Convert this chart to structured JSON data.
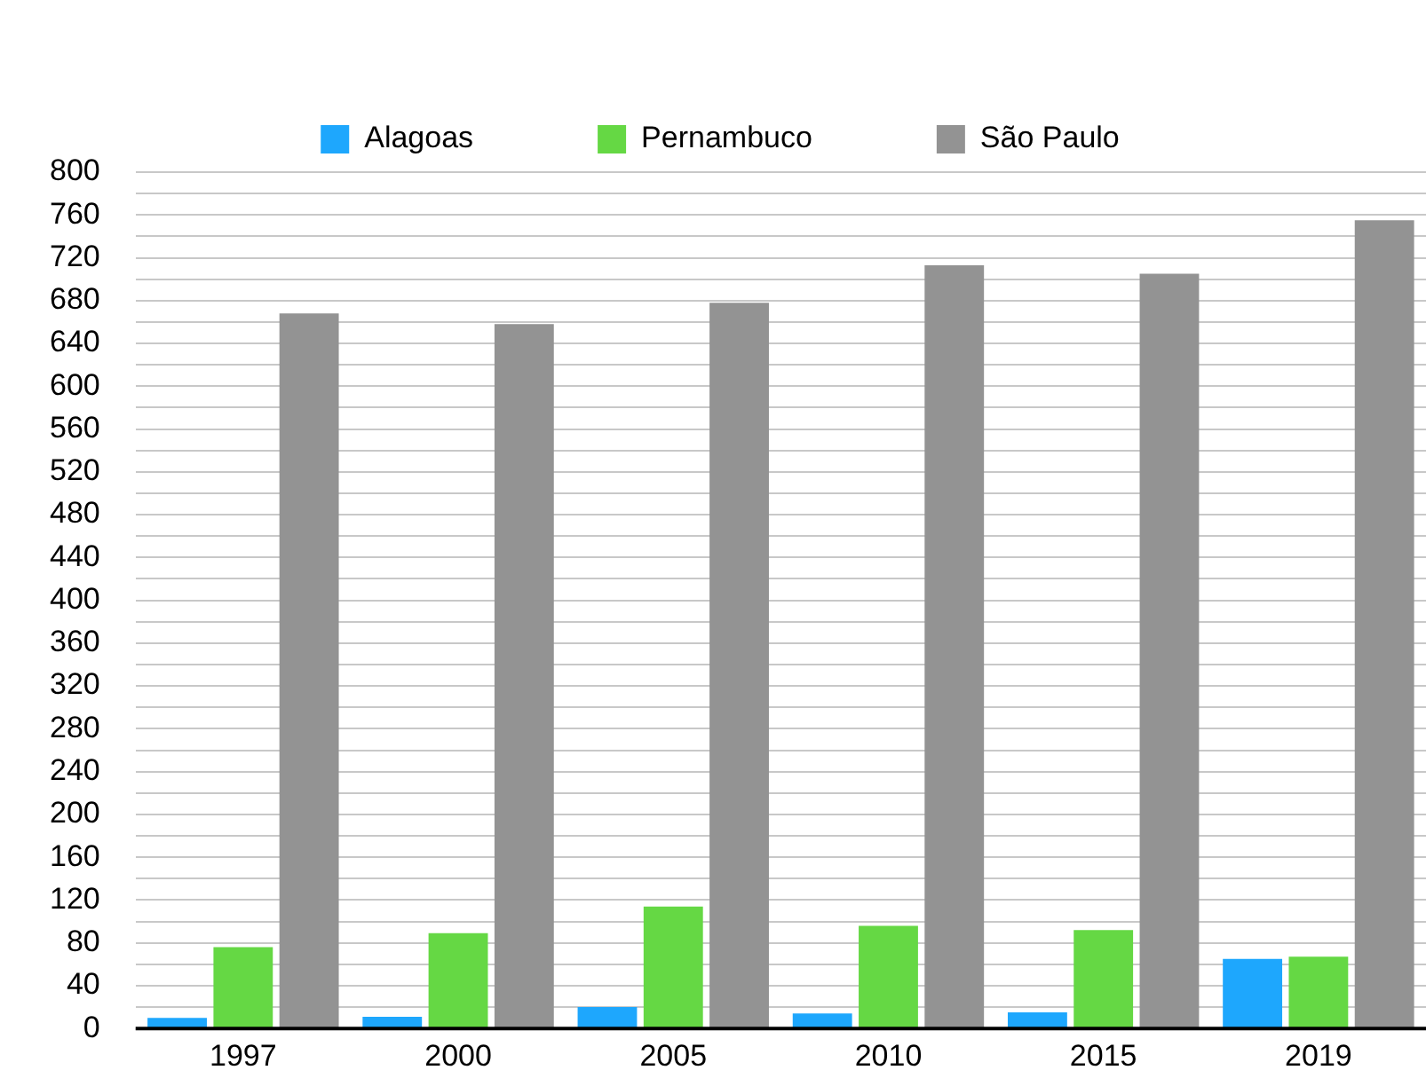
{
  "chart_data": {
    "type": "bar",
    "categories": [
      "1997",
      "2000",
      "2005",
      "2010",
      "2015",
      "2019"
    ],
    "series": [
      {
        "name": "Alagoas",
        "color": "#1ea7fd",
        "values": [
          10,
          11,
          20,
          14,
          15,
          65
        ]
      },
      {
        "name": "Pernambuco",
        "color": "#65d844",
        "values": [
          76,
          89,
          114,
          96,
          92,
          67
        ]
      },
      {
        "name": "São Paulo",
        "color": "#939393",
        "values": [
          668,
          658,
          678,
          713,
          705,
          755
        ]
      }
    ],
    "ylim": [
      0,
      800
    ],
    "yticks": [
      0,
      {
        "value": 20,
        "label": null
      },
      40,
      {
        "value": 60,
        "label": null
      },
      80,
      {
        "value": 100,
        "label": null
      },
      120,
      {
        "value": 140,
        "label": null
      },
      160,
      {
        "value": 180,
        "label": null
      },
      200,
      {
        "value": 220,
        "label": null
      },
      240,
      {
        "value": 260,
        "label": null
      },
      280,
      {
        "value": 300,
        "label": null
      },
      320,
      {
        "value": 340,
        "label": null
      },
      360,
      {
        "value": 380,
        "label": null
      },
      400,
      {
        "value": 420,
        "label": null
      },
      440,
      {
        "value": 460,
        "label": null
      },
      480,
      {
        "value": 500,
        "label": null
      },
      520,
      {
        "value": 540,
        "label": null
      },
      560,
      {
        "value": 580,
        "label": null
      },
      600,
      {
        "value": 620,
        "label": null
      },
      640,
      {
        "value": 660,
        "label": null
      },
      680,
      {
        "value": 700,
        "label": null
      },
      720,
      {
        "value": 740,
        "label": null
      },
      760,
      {
        "value": 780,
        "label": null
      },
      800
    ],
    "grid": "y",
    "legend": "top"
  }
}
